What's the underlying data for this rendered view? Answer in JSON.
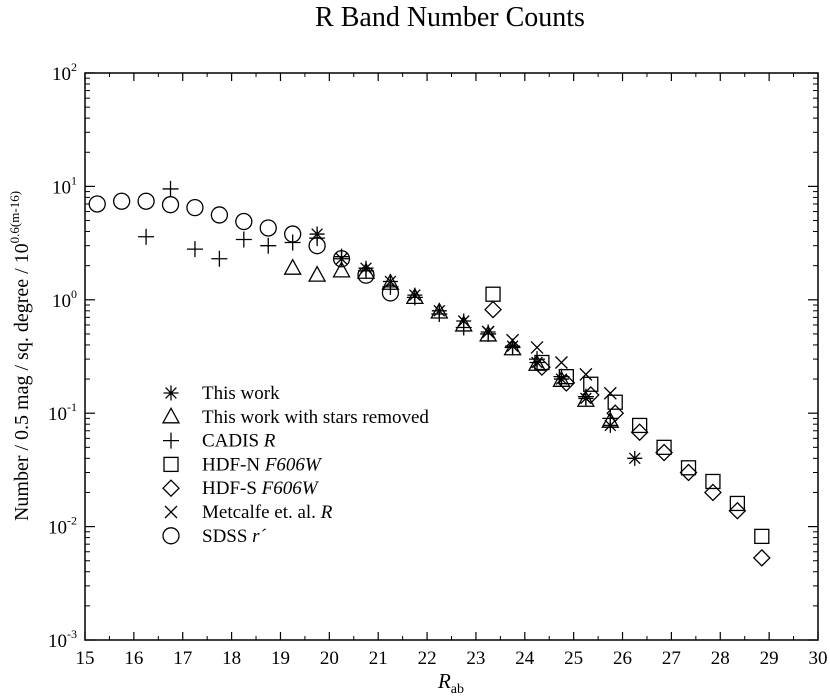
{
  "chart_data": {
    "type": "scatter",
    "title": "R Band Number Counts",
    "xlabel": {
      "main": "R",
      "sub": "ab"
    },
    "ylabel": {
      "main": "Number / 0.5 mag / sq. degree / 10",
      "sup": "0.6(m-16)"
    },
    "xlim": [
      15,
      30
    ],
    "ylim": [
      0.001,
      100
    ],
    "yscale": "log",
    "xticks": [
      "15",
      "16",
      "17",
      "18",
      "19",
      "20",
      "21",
      "22",
      "23",
      "24",
      "25",
      "26",
      "27",
      "28",
      "29",
      "30"
    ],
    "yticks": [
      {
        "value": 0.001,
        "base": "10",
        "exp": "-3"
      },
      {
        "value": 0.01,
        "base": "10",
        "exp": "-2"
      },
      {
        "value": 0.1,
        "base": "10",
        "exp": "-1"
      },
      {
        "value": 1,
        "base": "10",
        "exp": "0"
      },
      {
        "value": 10,
        "base": "10",
        "exp": "1"
      },
      {
        "value": 100,
        "base": "10",
        "exp": "2"
      }
    ],
    "grid": false,
    "legend_position": "bottom-left",
    "series": [
      {
        "name": "This work",
        "italic": "",
        "marker": "asterisk",
        "points": [
          [
            19.75,
            3.8
          ],
          [
            20.25,
            2.3
          ],
          [
            20.75,
            1.9
          ],
          [
            21.25,
            1.45
          ],
          [
            21.75,
            1.1
          ],
          [
            22.25,
            0.8
          ],
          [
            22.75,
            0.65
          ],
          [
            23.25,
            0.52
          ],
          [
            23.75,
            0.39
          ],
          [
            24.25,
            0.28
          ],
          [
            24.75,
            0.2
          ],
          [
            25.25,
            0.135
          ],
          [
            25.75,
            0.078
          ],
          [
            26.25,
            0.04
          ]
        ]
      },
      {
        "name": "This work with stars removed",
        "italic": "",
        "marker": "triangle",
        "points": [
          [
            19.25,
            1.9
          ],
          [
            19.75,
            1.65
          ],
          [
            20.25,
            1.8
          ],
          [
            20.75,
            1.75
          ],
          [
            21.25,
            1.4
          ],
          [
            21.75,
            1.05
          ],
          [
            22.25,
            0.78
          ],
          [
            22.75,
            0.6
          ],
          [
            23.25,
            0.49
          ],
          [
            23.75,
            0.37
          ],
          [
            24.25,
            0.27
          ],
          [
            24.75,
            0.195
          ],
          [
            25.25,
            0.13
          ],
          [
            25.75,
            0.085
          ]
        ]
      },
      {
        "name": "CADIS ",
        "italic": "R",
        "marker": "plus",
        "points": [
          [
            16.25,
            3.6
          ],
          [
            16.75,
            9.5
          ],
          [
            17.25,
            2.8
          ],
          [
            17.75,
            2.3
          ],
          [
            18.25,
            3.4
          ],
          [
            18.75,
            3.0
          ],
          [
            19.25,
            3.2
          ],
          [
            19.75,
            3.5
          ],
          [
            20.25,
            2.4
          ],
          [
            20.75,
            1.8
          ],
          [
            21.25,
            1.3
          ],
          [
            21.75,
            1.05
          ],
          [
            22.25,
            0.75
          ],
          [
            22.75,
            0.57
          ],
          [
            23.25,
            0.5
          ],
          [
            23.75,
            0.38
          ],
          [
            24.25,
            0.3
          ],
          [
            24.75,
            0.21
          ],
          [
            25.25,
            0.14
          ],
          [
            25.75,
            0.09
          ]
        ]
      },
      {
        "name": "HDF-N ",
        "italic": "F606W",
        "marker": "square",
        "points": [
          [
            23.35,
            1.12
          ],
          [
            24.35,
            0.28
          ],
          [
            24.85,
            0.21
          ],
          [
            25.35,
            0.18
          ],
          [
            25.85,
            0.125
          ],
          [
            26.35,
            0.078
          ],
          [
            26.85,
            0.05
          ],
          [
            27.35,
            0.033
          ],
          [
            27.85,
            0.025
          ],
          [
            28.35,
            0.016
          ],
          [
            28.85,
            0.0082
          ]
        ]
      },
      {
        "name": "HDF-S ",
        "italic": "F606W",
        "marker": "diamond",
        "points": [
          [
            23.35,
            0.82
          ],
          [
            24.35,
            0.255
          ],
          [
            24.85,
            0.185
          ],
          [
            25.35,
            0.145
          ],
          [
            25.85,
            0.1
          ],
          [
            26.35,
            0.068
          ],
          [
            26.85,
            0.045
          ],
          [
            27.35,
            0.03
          ],
          [
            27.85,
            0.02
          ],
          [
            28.35,
            0.0138
          ],
          [
            28.85,
            0.0053
          ]
        ]
      },
      {
        "name": "Metcalfe et. al. ",
        "italic": "R",
        "marker": "cross",
        "points": [
          [
            23.25,
            0.52
          ],
          [
            23.75,
            0.44
          ],
          [
            24.25,
            0.38
          ],
          [
            24.75,
            0.28
          ],
          [
            25.25,
            0.22
          ],
          [
            25.75,
            0.15
          ]
        ]
      },
      {
        "name": "SDSS ",
        "italic": "r´",
        "marker": "circle",
        "points": [
          [
            15.25,
            7.0
          ],
          [
            15.75,
            7.4
          ],
          [
            16.25,
            7.4
          ],
          [
            16.75,
            6.9
          ],
          [
            17.25,
            6.5
          ],
          [
            17.75,
            5.6
          ],
          [
            18.25,
            4.9
          ],
          [
            18.75,
            4.3
          ],
          [
            19.25,
            3.8
          ],
          [
            19.75,
            3.0
          ],
          [
            20.25,
            2.3
          ],
          [
            20.75,
            1.65
          ],
          [
            21.25,
            1.15
          ]
        ]
      }
    ]
  }
}
